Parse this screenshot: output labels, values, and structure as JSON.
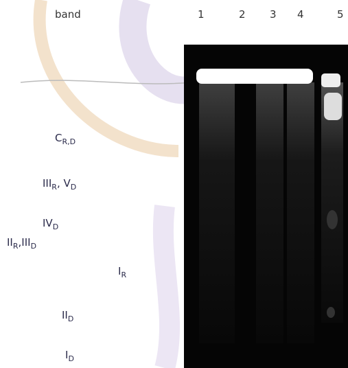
{
  "header": "band",
  "lanes": [
    "1",
    "2",
    "3",
    "4",
    "5"
  ],
  "labels": [
    {
      "parts": [
        {
          "text": "C",
          "sub": "R,D"
        }
      ]
    },
    {
      "parts": [
        {
          "text": "III",
          "sub": "R"
        },
        {
          "text": ", V",
          "sub": "D"
        }
      ]
    },
    {
      "parts": [
        {
          "text": "IV",
          "sub": "D"
        }
      ]
    },
    {
      "parts": [
        {
          "text": "II",
          "sub": "R"
        },
        {
          "text": ",III",
          "sub": "D"
        }
      ]
    },
    {
      "parts": [
        {
          "text": "I",
          "sub": "R"
        }
      ]
    },
    {
      "parts": [
        {
          "text": "II",
          "sub": "D"
        }
      ]
    },
    {
      "parts": [
        {
          "text": "I",
          "sub": "D"
        }
      ]
    }
  ]
}
